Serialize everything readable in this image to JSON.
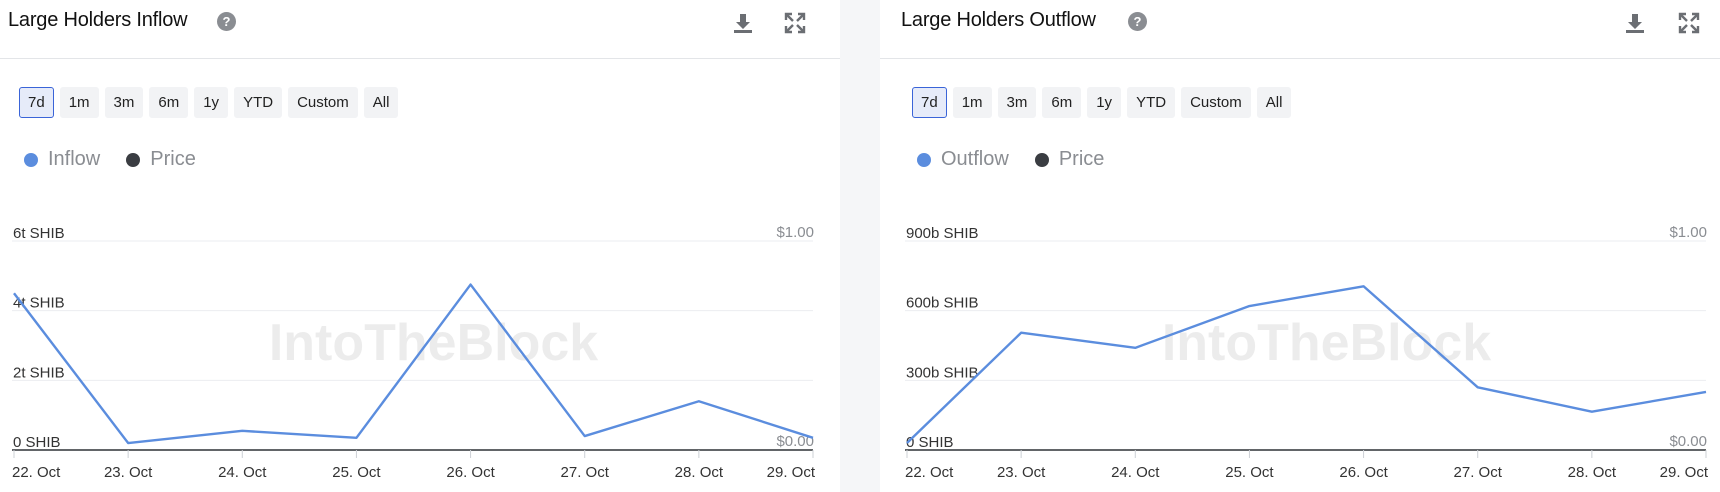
{
  "panels": [
    {
      "title": "Large Holders Inflow",
      "help": "?",
      "ranges": [
        "7d",
        "1m",
        "3m",
        "6m",
        "1y",
        "YTD",
        "Custom",
        "All"
      ],
      "active_range": "7d",
      "legend": [
        {
          "label": "Inflow",
          "color": "#5b8dde"
        },
        {
          "label": "Price",
          "color": "#3a3d42"
        }
      ],
      "watermark": "IntoTheBlock"
    },
    {
      "title": "Large Holders Outflow",
      "help": "?",
      "ranges": [
        "7d",
        "1m",
        "3m",
        "6m",
        "1y",
        "YTD",
        "Custom",
        "All"
      ],
      "active_range": "7d",
      "legend": [
        {
          "label": "Outflow",
          "color": "#5b8dde"
        },
        {
          "label": "Price",
          "color": "#3a3d42"
        }
      ],
      "watermark": "IntoTheBlock"
    }
  ],
  "chart_data": [
    {
      "type": "line",
      "title": "Large Holders Inflow",
      "x": [
        "22. Oct",
        "23. Oct",
        "24. Oct",
        "25. Oct",
        "26. Oct",
        "27. Oct",
        "28. Oct",
        "29. Oct"
      ],
      "y_ticks": [
        "0 SHIB",
        "2t SHIB",
        "4t SHIB",
        "6t SHIB"
      ],
      "y_tick_values": [
        0,
        2,
        4,
        6
      ],
      "y_unit": "t SHIB",
      "ylim": [
        0,
        6
      ],
      "y2_ticks": [
        "$0.00",
        "$1.00"
      ],
      "y2_tick_values": [
        0,
        1
      ],
      "series": [
        {
          "name": "Inflow",
          "color": "#5b8dde",
          "values": [
            4.5,
            0.2,
            0.55,
            0.35,
            4.75,
            0.4,
            1.4,
            0.35
          ]
        }
      ],
      "grid": true
    },
    {
      "type": "line",
      "title": "Large Holders Outflow",
      "x": [
        "22. Oct",
        "23. Oct",
        "24. Oct",
        "25. Oct",
        "26. Oct",
        "27. Oct",
        "28. Oct",
        "29. Oct"
      ],
      "y_ticks": [
        "0 SHIB",
        "300b SHIB",
        "600b SHIB",
        "900b SHIB"
      ],
      "y_tick_values": [
        0,
        300,
        600,
        900
      ],
      "y_unit": "b SHIB",
      "ylim": [
        0,
        900
      ],
      "y2_ticks": [
        "$0.00",
        "$1.00"
      ],
      "y2_tick_values": [
        0,
        1
      ],
      "series": [
        {
          "name": "Outflow",
          "color": "#5b8dde",
          "values": [
            30,
            505,
            440,
            620,
            705,
            270,
            165,
            250
          ]
        }
      ],
      "grid": true
    }
  ]
}
